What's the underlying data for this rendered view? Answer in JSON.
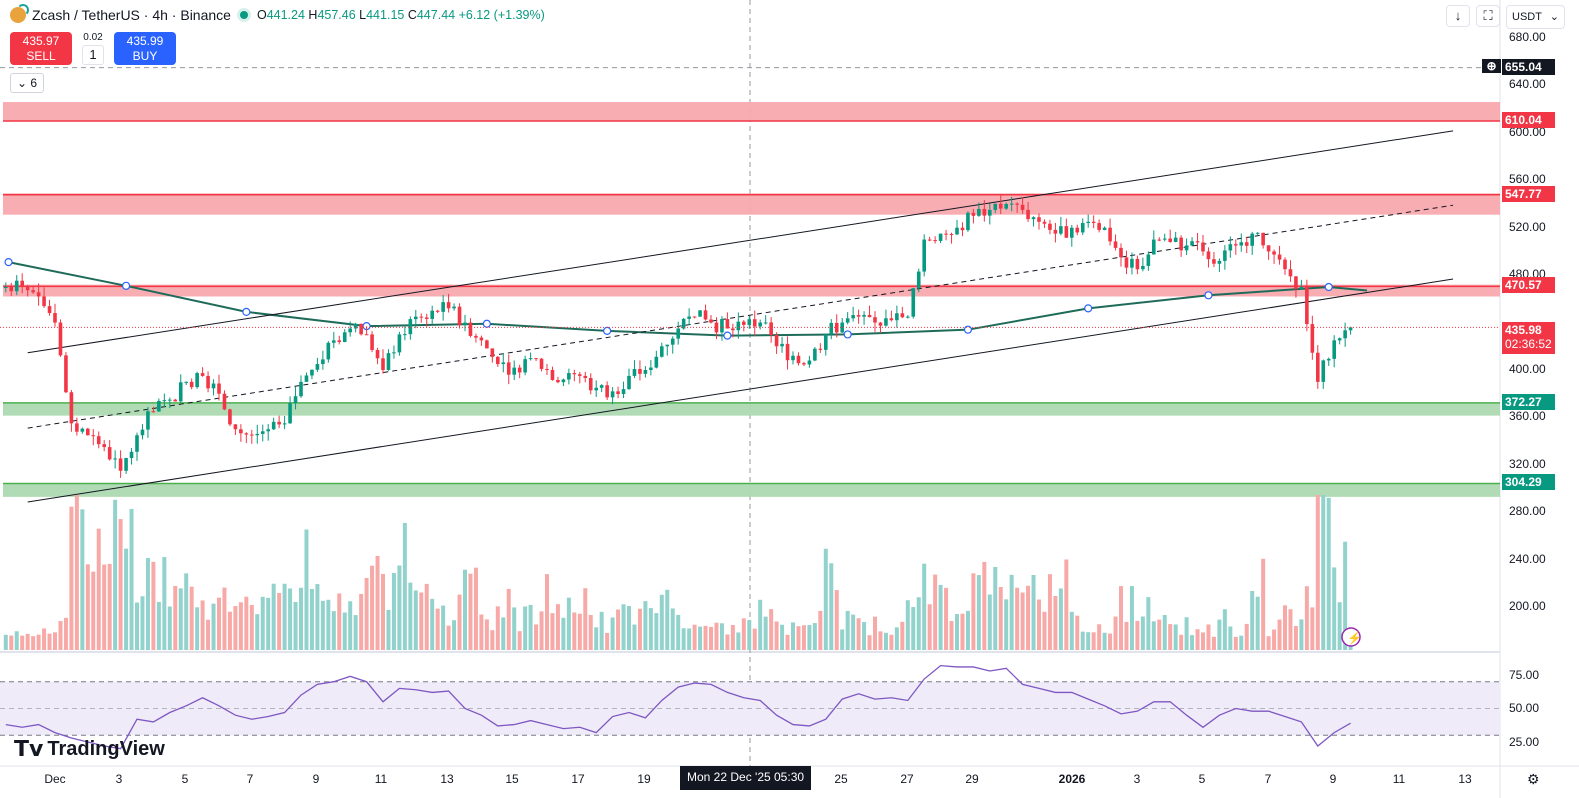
{
  "header": {
    "symbol": "Zcash / TetherUS · 4h · Binance",
    "o_label": "O",
    "o": "441.24",
    "h_label": "H",
    "h": "457.46",
    "l_label": "L",
    "l": "441.15",
    "c_label": "C",
    "c": "447.44",
    "change": "+6.12 (+1.39%)"
  },
  "trade": {
    "sell_price": "435.97",
    "sell_label": "SELL",
    "buy_price": "435.99",
    "buy_label": "BUY",
    "spread": "0.02",
    "quantity": "1"
  },
  "indicators_collapse": {
    "icon": "chevron-down-icon",
    "count": "6"
  },
  "toolbar": {
    "currency": "USDT",
    "currency_arrow": "⌄",
    "download_icon": "↓",
    "fullscreen_icon": "⛶"
  },
  "colors": {
    "up": "#089981",
    "down": "#f23645",
    "resistance_zone": "#f7a9ae",
    "support_zone": "#acd9b0",
    "ma": "#1f6b5a",
    "rsi": "#7e57c2",
    "rsi_band": "#efebf8"
  },
  "price_axis": {
    "ticks": [
      680,
      640,
      600,
      560,
      520,
      480,
      400,
      360,
      320,
      280,
      240,
      200
    ],
    "tick_labels": [
      "680.00",
      "640.00",
      "600.00",
      "560.00",
      "520.00",
      "480.00",
      "400.00",
      "360.00",
      "320.00",
      "280.00",
      "240.00",
      "200.00"
    ]
  },
  "price_tags": {
    "crosshair": "655.04",
    "r1": "610.04",
    "r2": "547.77",
    "r3": "470.57",
    "last": "435.98",
    "countdown": "02:36:52",
    "s1": "372.27",
    "s2": "304.29"
  },
  "rsi_axis": {
    "labels": [
      "75.00",
      "50.00",
      "25.00"
    ]
  },
  "time_axis": {
    "labels": [
      "Dec",
      "3",
      "5",
      "7",
      "9",
      "11",
      "13",
      "15",
      "17",
      "19",
      "25",
      "27",
      "29",
      "2026",
      "3",
      "5",
      "7",
      "9",
      "11",
      "13"
    ],
    "crosshair": "Mon 22 Dec '25   05:30"
  },
  "brand": "TradingView",
  "chart_data": {
    "type": "candlestick",
    "interval": "4h",
    "time": [
      "2025-11-29 12:00",
      "2025-11-30 00:00",
      "2025-11-30 12:00",
      "2025-12-01 00:00",
      "2025-12-01 12:00",
      "2025-12-02 00:00",
      "2025-12-02 12:00",
      "2025-12-03 00:00",
      "2025-12-03 12:00",
      "2025-12-04 00:00",
      "2025-12-04 12:00",
      "2025-12-05 00:00",
      "2025-12-05 12:00",
      "2025-12-06 00:00",
      "2025-12-06 12:00",
      "2025-12-07 00:00",
      "2025-12-07 12:00",
      "2025-12-08 00:00",
      "2025-12-08 12:00",
      "2025-12-09 00:00",
      "2025-12-09 12:00",
      "2025-12-10 00:00",
      "2025-12-10 12:00",
      "2025-12-11 00:00",
      "2025-12-11 12:00",
      "2025-12-12 00:00",
      "2025-12-12 12:00",
      "2025-12-13 00:00",
      "2025-12-13 12:00",
      "2025-12-14 00:00",
      "2025-12-14 12:00",
      "2025-12-15 00:00",
      "2025-12-15 12:00",
      "2025-12-16 00:00",
      "2025-12-16 12:00",
      "2025-12-17 00:00",
      "2025-12-17 12:00",
      "2025-12-18 00:00",
      "2025-12-18 12:00",
      "2025-12-19 00:00",
      "2025-12-19 12:00",
      "2025-12-20 00:00",
      "2025-12-20 12:00",
      "2025-12-21 00:00",
      "2025-12-21 12:00",
      "2025-12-22 00:00",
      "2025-12-22 12:00",
      "2025-12-23 00:00",
      "2025-12-23 12:00",
      "2025-12-24 00:00",
      "2025-12-24 12:00",
      "2025-12-25 00:00",
      "2025-12-25 12:00",
      "2025-12-26 00:00",
      "2025-12-26 12:00",
      "2025-12-27 00:00",
      "2025-12-27 12:00",
      "2025-12-28 00:00",
      "2025-12-28 12:00",
      "2025-12-29 00:00",
      "2025-12-29 12:00",
      "2025-12-30 00:00",
      "2025-12-30 12:00",
      "2025-12-31 00:00",
      "2025-12-31 12:00",
      "2026-01-01 00:00",
      "2026-01-01 12:00",
      "2026-01-02 00:00",
      "2026-01-02 12:00",
      "2026-01-03 00:00",
      "2026-01-03 12:00",
      "2026-01-04 00:00",
      "2026-01-04 12:00",
      "2026-01-05 00:00",
      "2026-01-05 12:00",
      "2026-01-06 00:00",
      "2026-01-06 12:00",
      "2026-01-07 00:00",
      "2026-01-07 12:00",
      "2026-01-08 00:00",
      "2026-01-08 12:00",
      "2026-01-09 00:00",
      "2026-01-09 12:00"
    ],
    "close": [
      470,
      470,
      462,
      440,
      355,
      345,
      335,
      315,
      345,
      365,
      375,
      390,
      395,
      380,
      350,
      345,
      350,
      355,
      390,
      405,
      425,
      435,
      430,
      400,
      430,
      445,
      450,
      452,
      440,
      425,
      405,
      402,
      410,
      400,
      392,
      395,
      385,
      382,
      395,
      400,
      420,
      435,
      445,
      440,
      435,
      438,
      440,
      420,
      412,
      408,
      430,
      440,
      445,
      440,
      442,
      445,
      510,
      515,
      520,
      530,
      535,
      540,
      535,
      525,
      515,
      520,
      525,
      520,
      495,
      485,
      510,
      508,
      505,
      500,
      492,
      505,
      515,
      500,
      485,
      470,
      390,
      425,
      436
    ],
    "volume_relative": [
      15,
      15,
      15,
      15,
      95,
      60,
      70,
      75,
      55,
      45,
      40,
      50,
      35,
      30,
      30,
      25,
      30,
      45,
      55,
      35,
      40,
      30,
      45,
      35,
      65,
      35,
      30,
      25,
      50,
      20,
      30,
      20,
      25,
      35,
      25,
      30,
      20,
      25,
      20,
      25,
      35,
      25,
      20,
      15,
      15,
      25,
      25,
      15,
      20,
      25,
      50,
      20,
      15,
      15,
      15,
      25,
      45,
      30,
      25,
      40,
      50,
      40,
      35,
      35,
      60,
      20,
      15,
      15,
      30,
      25,
      20,
      15,
      15,
      15,
      20,
      15,
      50,
      15,
      20,
      35,
      95,
      55,
      20
    ],
    "rsi": [
      38,
      36,
      38,
      32,
      28,
      25,
      22,
      20,
      42,
      40,
      47,
      52,
      58,
      52,
      45,
      42,
      44,
      47,
      60,
      68,
      70,
      74,
      70,
      55,
      65,
      64,
      62,
      63,
      50,
      45,
      37,
      38,
      41,
      38,
      35,
      36,
      32,
      44,
      47,
      43,
      56,
      66,
      69,
      68,
      62,
      58,
      56,
      45,
      38,
      37,
      42,
      57,
      61,
      57,
      58,
      56,
      72,
      82,
      81,
      81,
      78,
      80,
      68,
      65,
      62,
      62,
      57,
      52,
      46,
      48,
      55,
      55,
      45,
      36,
      45,
      50,
      48,
      48,
      44,
      40,
      22,
      32,
      39
    ],
    "moving_average": {
      "time": [
        "2025-11-29 14:00",
        "2025-12-03 04:00",
        "2025-12-06 20:00",
        "2025-12-10 12:00",
        "2025-12-14 04:00",
        "2025-12-17 20:00",
        "2025-12-21 12:00",
        "2025-12-25 04:00",
        "2025-12-28 20:00",
        "2026-01-01 12:00",
        "2026-01-05 04:00",
        "2026-01-08 20:00",
        "2026-01-10 00:00"
      ],
      "value": [
        491,
        471,
        449,
        437,
        439,
        433,
        429,
        430,
        434,
        452,
        463,
        470,
        467
      ]
    },
    "trend_lines": [
      {
        "style": "solid",
        "from": [
          "2025-11-30 04:00",
          414.5
        ],
        "to": [
          "2026-01-12 15:00",
          601.7
        ]
      },
      {
        "style": "dashed",
        "from": [
          "2025-11-30 04:00",
          351
        ],
        "to": [
          "2026-01-12 15:00",
          539
        ]
      },
      {
        "style": "solid",
        "from": [
          "2025-11-30 04:00",
          288.7
        ],
        "to": [
          "2026-01-12 15:00",
          476.7
        ]
      }
    ],
    "zones": [
      {
        "kind": "resistance",
        "top": 626,
        "bottom": 610.04,
        "line": 610.04
      },
      {
        "kind": "resistance",
        "top": 549,
        "bottom": 531,
        "line": 547.77
      },
      {
        "kind": "resistance",
        "top": 472,
        "bottom": 462,
        "line": 470.57
      },
      {
        "kind": "support",
        "top": 372.27,
        "bottom": 361.5,
        "line": 372.27
      },
      {
        "kind": "support",
        "top": 304.29,
        "bottom": 293,
        "line": 304.29
      }
    ],
    "rsi_levels": [
      70,
      50,
      30
    ],
    "ylim": [
      160,
      690
    ],
    "rsi_ylim": [
      10,
      90
    ],
    "last_price": 435.98,
    "crosshair": {
      "time": "2025-12-22 05:30",
      "price": 655.04
    }
  }
}
